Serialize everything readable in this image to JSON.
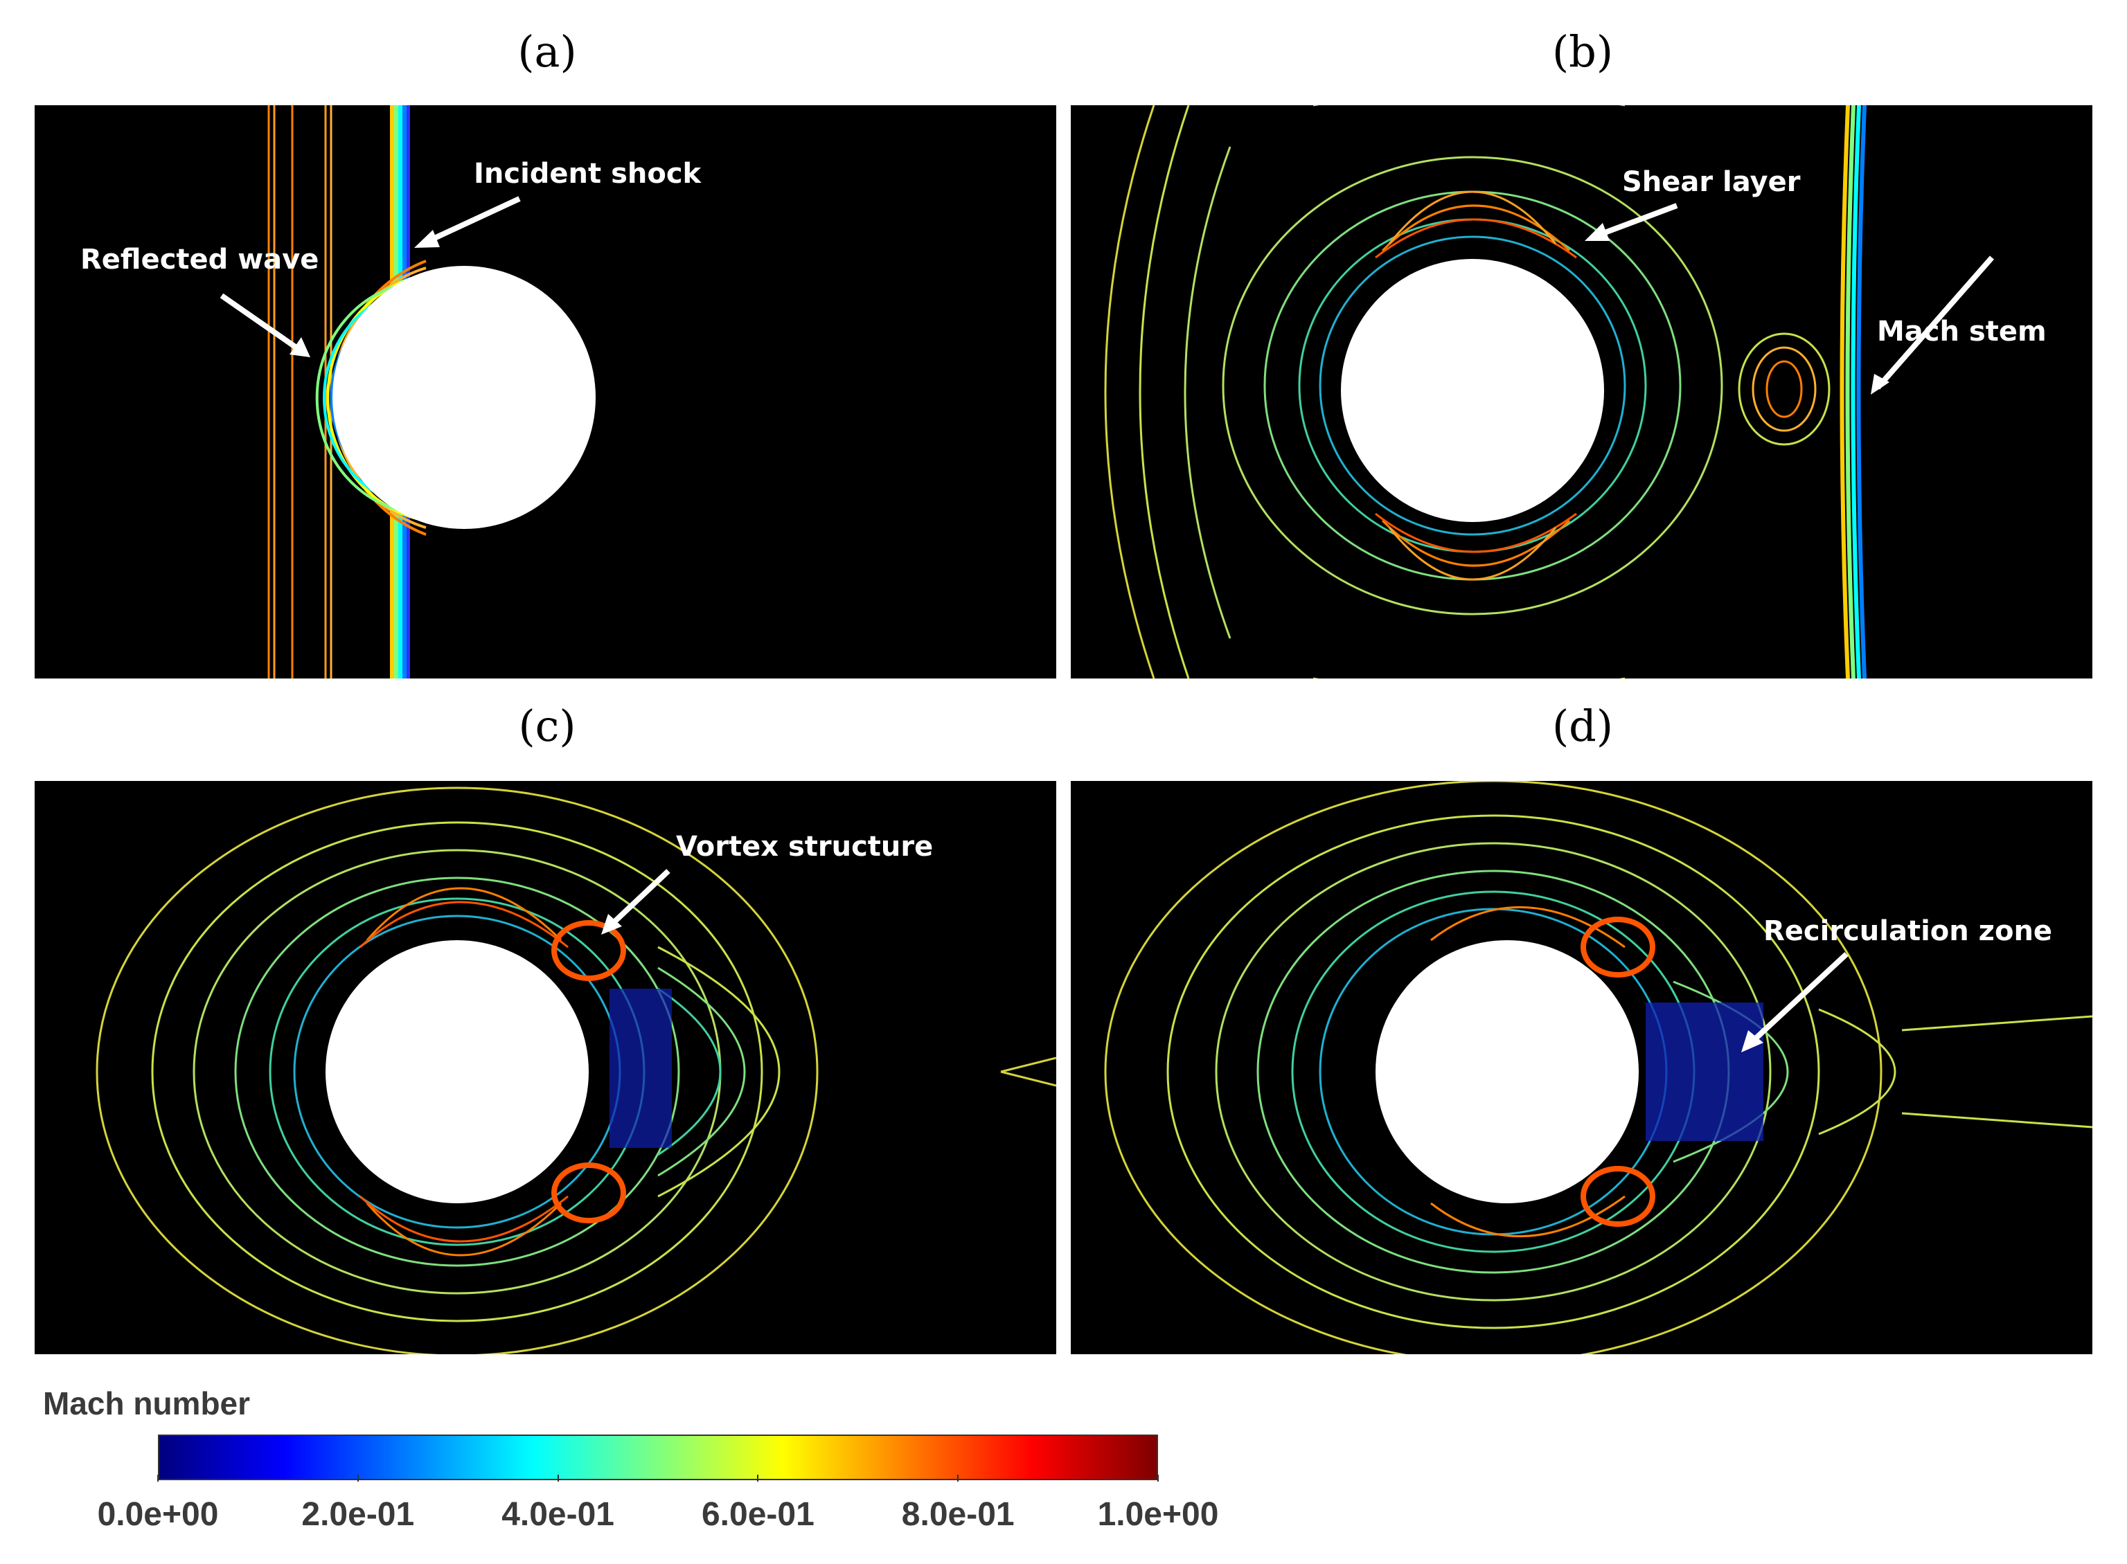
{
  "panels": [
    {
      "label": "(a)",
      "annotations": [
        "Reflected wave",
        "Incident shock"
      ]
    },
    {
      "label": "(b)",
      "annotations": [
        "Shear layer",
        "Mach stem"
      ]
    },
    {
      "label": "(c)",
      "annotations": [
        "Vortex structure"
      ]
    },
    {
      "label": "(d)",
      "annotations": [
        "Recirculation  zone"
      ]
    }
  ],
  "colorbar": {
    "title": "Mach number",
    "ticks": [
      "0.0e+00",
      "2.0e-01",
      "4.0e-01",
      "6.0e-01",
      "8.0e-01",
      "1.0e+00"
    ],
    "range": [
      0,
      1
    ],
    "colors": [
      "#00007f",
      "#0000ff",
      "#007fff",
      "#00ffff",
      "#7fff7f",
      "#ffff00",
      "#ff7f00",
      "#ff0000",
      "#7f0000"
    ]
  }
}
